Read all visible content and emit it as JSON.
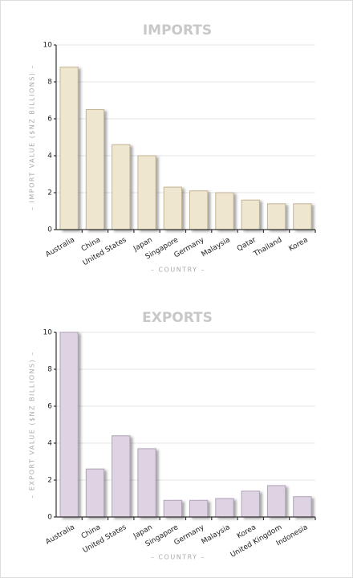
{
  "chart_data": [
    {
      "type": "bar",
      "title": "IMPORTS",
      "y_label": "– IMPORT VALUE ($NZ BILLIONS) –",
      "x_label": "– COUNTRY –",
      "categories": [
        "Australia",
        "China",
        "United States",
        "Japan",
        "Singapore",
        "Germany",
        "Malaysia",
        "Qatar",
        "Thailand",
        "Korea"
      ],
      "values": [
        8.8,
        6.5,
        4.6,
        4.0,
        2.3,
        2.1,
        2.0,
        1.6,
        1.4,
        1.4
      ],
      "color": "#efe6cf",
      "edge_color": "#c4b596",
      "ylim": [
        0,
        10
      ],
      "yticks": [
        0,
        2,
        4,
        6,
        8,
        10
      ],
      "grid": true
    },
    {
      "type": "bar",
      "title": "EXPORTS",
      "y_label": "– EXPORT VALUE ($NZ BILLIONS) –",
      "x_label": "– COUNTRY –",
      "categories": [
        "Australia",
        "China",
        "United States",
        "Japan",
        "Singapore",
        "Germany",
        "Malaysia",
        "Korea",
        "United Kingdom",
        "Indonesia"
      ],
      "values": [
        10,
        2.6,
        4.4,
        3.7,
        0.9,
        0.9,
        1.0,
        1.4,
        1.7,
        1.1
      ],
      "color": "#ddd3e2",
      "edge_color": "#b3a2ba",
      "ylim": [
        0,
        10
      ],
      "yticks": [
        0,
        2,
        4,
        6,
        8,
        10
      ],
      "grid": true
    }
  ]
}
